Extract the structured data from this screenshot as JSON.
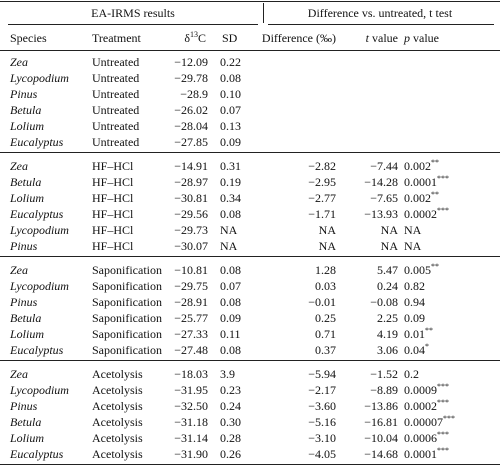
{
  "header_groups": [
    "EA-IRMS results",
    "Difference vs. untreated, t test"
  ],
  "columns": {
    "species": "Species",
    "treatment": "Treatment",
    "d13c": {
      "pre": "δ",
      "sup": "13",
      "post": "C"
    },
    "sd": "SD",
    "diff": "Difference (‰)",
    "t": {
      "italic": "t",
      "rest": " value"
    },
    "p": {
      "italic": "p",
      "rest": " value"
    }
  },
  "sections": [
    [
      [
        "Zea",
        "Untreated",
        "−12.09",
        "0.22"
      ],
      [
        "Lycopodium",
        "Untreated",
        "−29.78",
        "0.08"
      ],
      [
        "Pinus",
        "Untreated",
        "−28.9",
        "0.10"
      ],
      [
        "Betula",
        "Untreated",
        "−26.02",
        "0.07"
      ],
      [
        "Lolium",
        "Untreated",
        "−28.04",
        "0.13"
      ],
      [
        "Eucalyptus",
        "Untreated",
        "−27.85",
        "0.09"
      ]
    ],
    [
      [
        "Zea",
        "HF–HCl",
        "−14.91",
        "0.31",
        "−2.82",
        "−7.44",
        "0.002",
        "**"
      ],
      [
        "Betula",
        "HF–HCl",
        "−28.97",
        "0.19",
        "−2.95",
        "−14.28",
        "0.0001",
        "***"
      ],
      [
        "Lolium",
        "HF–HCl",
        "−30.81",
        "0.34",
        "−2.77",
        "−7.65",
        "0.002",
        "**"
      ],
      [
        "Eucalyptus",
        "HF–HCl",
        "−29.56",
        "0.08",
        "−1.71",
        "−13.93",
        "0.0002",
        "***"
      ],
      [
        "Lycopodium",
        "HF–HCl",
        "−29.73",
        "NA",
        "NA",
        "NA",
        "NA"
      ],
      [
        "Pinus",
        "HF–HCl",
        "−30.07",
        "NA",
        "NA",
        "NA",
        "NA"
      ]
    ],
    [
      [
        "Zea",
        "Saponification",
        "−10.81",
        "0.08",
        "1.28",
        "5.47",
        "0.005",
        "**"
      ],
      [
        "Lycopodium",
        "Saponification",
        "−29.75",
        "0.07",
        "0.03",
        "0.24",
        "0.82"
      ],
      [
        "Pinus",
        "Saponification",
        "−28.91",
        "0.08",
        "−0.01",
        "−0.08",
        "0.94"
      ],
      [
        "Betula",
        "Saponification",
        "−25.77",
        "0.09",
        "0.25",
        "2.25",
        "0.09"
      ],
      [
        "Lolium",
        "Saponification",
        "−27.33",
        "0.11",
        "0.71",
        "4.19",
        "0.01",
        "**"
      ],
      [
        "Eucalyptus",
        "Saponification",
        "−27.48",
        "0.08",
        "0.37",
        "3.06",
        "0.04",
        "*"
      ]
    ],
    [
      [
        "Zea",
        "Acetolysis",
        "−18.03",
        "3.9",
        "−5.94",
        "−1.52",
        "0.2"
      ],
      [
        "Lycopodium",
        "Acetolysis",
        "−31.95",
        "0.23",
        "−2.17",
        "−8.89",
        "0.0009",
        "***"
      ],
      [
        "Pinus",
        "Acetolysis",
        "−32.50",
        "0.24",
        "−3.60",
        "−13.86",
        "0.0002",
        "***"
      ],
      [
        "Betula",
        "Acetolysis",
        "−31.18",
        "0.30",
        "−5.16",
        "−16.81",
        "0.00007",
        "***"
      ],
      [
        "Lolium",
        "Acetolysis",
        "−31.14",
        "0.28",
        "−3.10",
        "−10.04",
        "0.0006",
        "***"
      ],
      [
        "Eucalyptus",
        "Acetolysis",
        "−31.90",
        "0.26",
        "−4.05",
        "−14.68",
        "0.0001",
        "***"
      ]
    ]
  ]
}
